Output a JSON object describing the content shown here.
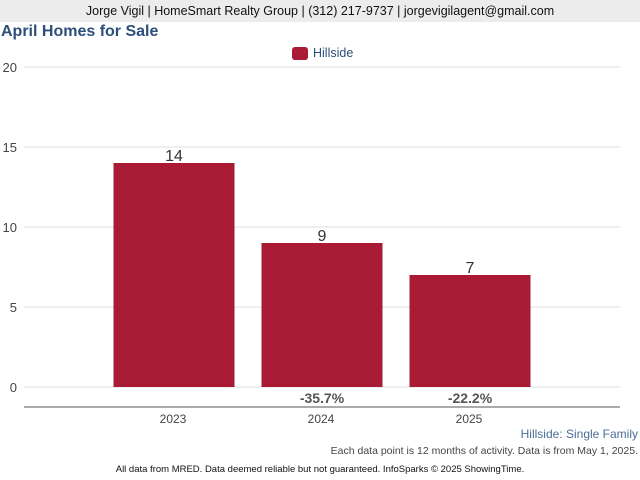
{
  "header": {
    "agent_line": "Jorge Vigil | HomeSmart Realty Group | (312) 217-9737 | jorgevigilagent@gmail.com"
  },
  "chart_data": {
    "type": "bar",
    "title": "April Homes for Sale",
    "categories": [
      "2023",
      "2024",
      "2025"
    ],
    "series": [
      {
        "name": "Hillside",
        "values": [
          14,
          9,
          7
        ],
        "color": "#a91b35"
      }
    ],
    "data_labels": [
      "14",
      "9",
      "7"
    ],
    "change_labels": [
      "",
      "-35.7%",
      "-22.2%"
    ],
    "yticks": [
      0,
      5,
      10,
      15,
      20
    ],
    "ylim": [
      0,
      20
    ],
    "grid": true,
    "legend_position": "top-center"
  },
  "notes": {
    "subtitle": "Hillside: Single Family",
    "activity": "Each data point is 12 months of activity. Data is from May 1, 2025.",
    "footer": "All data from MRED. Data deemed reliable but not guaranteed. InfoSparks © 2025 ShowingTime."
  },
  "colors": {
    "bar": "#a91b35",
    "title": "#2e4e7a",
    "grid": "#dddddd"
  }
}
